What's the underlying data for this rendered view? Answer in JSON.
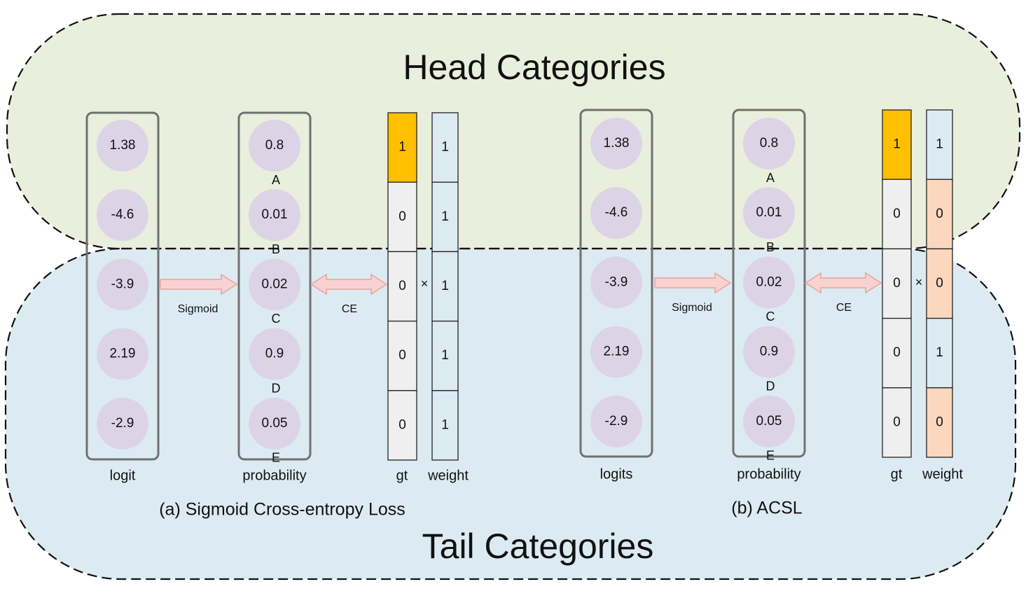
{
  "regions": {
    "head_label": "Head Categories",
    "tail_label": "Tail Categories",
    "head_fill": "#e9efdc",
    "tail_fill": "#dcebf2"
  },
  "colors": {
    "node_fill": "#dcd4e6",
    "gt_positive": "#ffc000",
    "cell_default": "#efefef",
    "weight_one": "#dcebf2",
    "weight_zero": "#fad7bd",
    "arrow_fill": "#f8d2d0",
    "arrow_stroke": "#e8a3a0",
    "frame_stroke": "#707070"
  },
  "panels": [
    {
      "caption": "(a) Sigmoid Cross-entropy Loss",
      "logit_label": "logit",
      "prob_label": "probability",
      "gt_label": "gt",
      "weight_label": "weight",
      "sigmoid_label": "Sigmoid",
      "ce_label": "CE",
      "times_sign": "×",
      "logits": [
        "1.38",
        "-4.6",
        "-3.9",
        "2.19",
        "-2.9"
      ],
      "probabilities": [
        "0.8",
        "0.01",
        "0.02",
        "0.9",
        "0.05"
      ],
      "letters": [
        "A",
        "B",
        "C",
        "D",
        "E"
      ],
      "gt": [
        "1",
        "0",
        "0",
        "0",
        "0"
      ],
      "weights": [
        "1",
        "1",
        "1",
        "1",
        "1"
      ]
    },
    {
      "caption": "(b) ACSL",
      "logit_label": "logits",
      "prob_label": "probability",
      "gt_label": "gt",
      "weight_label": "weight",
      "sigmoid_label": "Sigmoid",
      "ce_label": "CE",
      "times_sign": "×",
      "logits": [
        "1.38",
        "-4.6",
        "-3.9",
        "2.19",
        "-2.9"
      ],
      "probabilities": [
        "0.8",
        "0.01",
        "0.02",
        "0.9",
        "0.05"
      ],
      "letters": [
        "A",
        "B",
        "C",
        "D",
        "E"
      ],
      "gt": [
        "1",
        "0",
        "0",
        "0",
        "0"
      ],
      "weights": [
        "1",
        "0",
        "0",
        "1",
        "0"
      ]
    }
  ]
}
